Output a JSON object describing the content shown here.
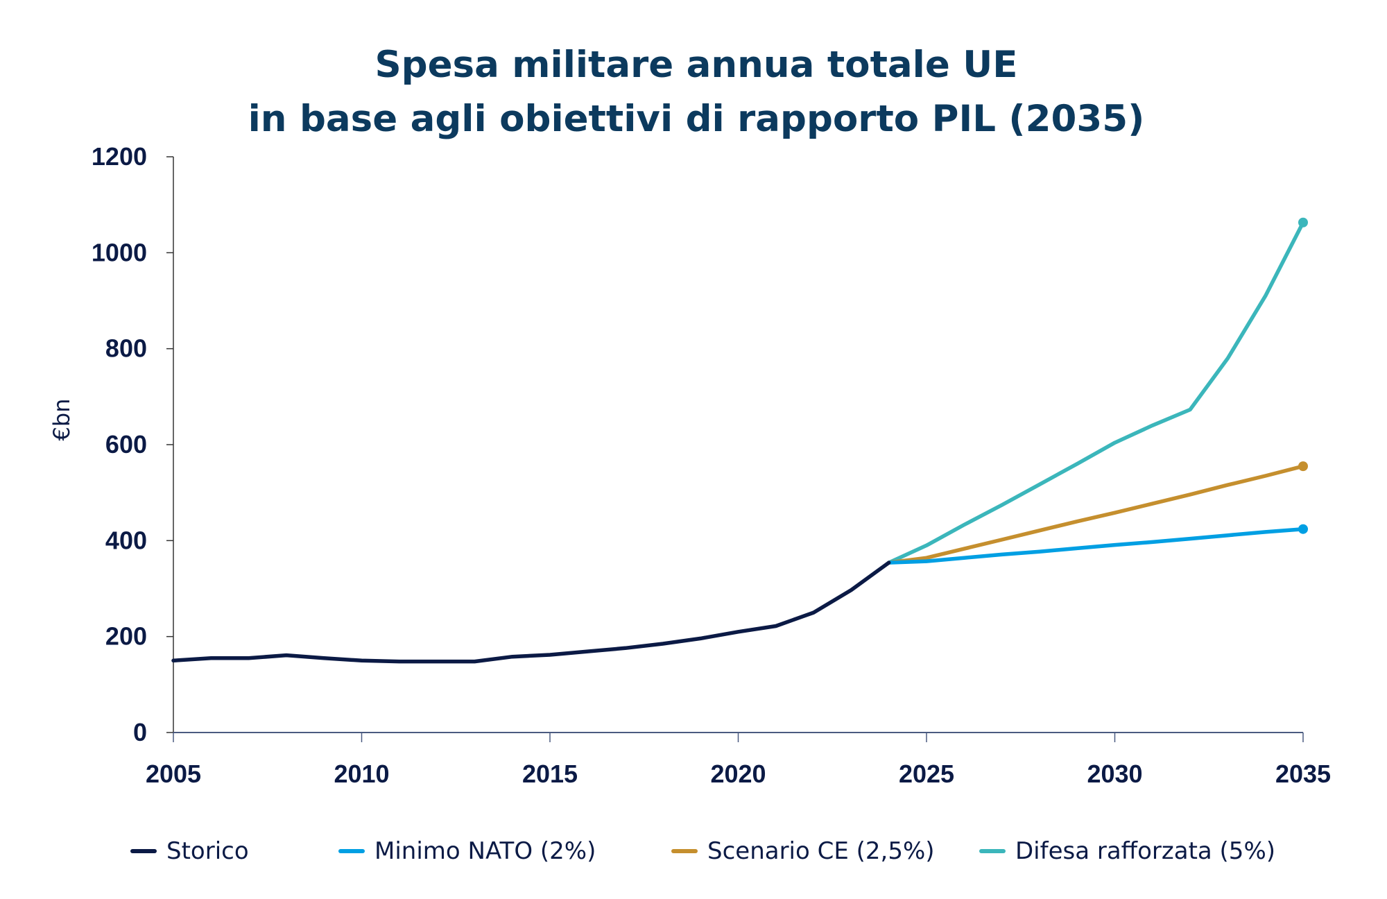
{
  "chart_data": {
    "type": "line",
    "title": [
      "Spesa militare annua totale UE",
      "in base agli obiettivi di rapporto PIL (2035)"
    ],
    "ylabel": "€bn",
    "xlabel": "",
    "xlim": [
      2005,
      2035
    ],
    "ylim": [
      0,
      1200
    ],
    "xticks": [
      2005,
      2010,
      2015,
      2020,
      2025,
      2030,
      2035
    ],
    "yticks": [
      0,
      200,
      400,
      600,
      800,
      1000,
      1200
    ],
    "grid": false,
    "legend_position": "bottom",
    "series": [
      {
        "name": "Storico",
        "color": "#0b1a45",
        "x": [
          2005,
          2006,
          2007,
          2008,
          2009,
          2010,
          2011,
          2012,
          2013,
          2014,
          2015,
          2016,
          2017,
          2018,
          2019,
          2020,
          2021,
          2022,
          2023,
          2024
        ],
        "values": [
          150,
          155,
          155,
          161,
          155,
          150,
          148,
          148,
          148,
          158,
          162,
          169,
          176,
          185,
          196,
          210,
          222,
          250,
          297,
          354
        ]
      },
      {
        "name": "Minimo NATO (2%)",
        "color": "#009fe3",
        "end_marker": true,
        "x": [
          2024,
          2025,
          2026,
          2027,
          2028,
          2029,
          2030,
          2031,
          2032,
          2033,
          2034,
          2035
        ],
        "values": [
          354,
          357,
          364,
          371,
          377,
          384,
          391,
          397,
          404,
          411,
          418,
          424
        ]
      },
      {
        "name": "Scenario CE (2,5%)",
        "color": "#c58f2e",
        "end_marker": true,
        "x": [
          2024,
          2025,
          2026,
          2027,
          2028,
          2029,
          2030,
          2031,
          2032,
          2033,
          2034,
          2035
        ],
        "values": [
          354,
          364,
          383,
          402,
          421,
          440,
          458,
          477,
          496,
          516,
          535,
          555
        ]
      },
      {
        "name": "Difesa rafforzata (5%)",
        "color": "#3bb6bb",
        "end_marker": true,
        "x": [
          2024,
          2025,
          2026,
          2027,
          2028,
          2029,
          2030,
          2031,
          2032,
          2033,
          2034,
          2035
        ],
        "values": [
          354,
          390,
          433,
          474,
          517,
          560,
          604,
          640,
          673,
          780,
          910,
          1063
        ]
      }
    ]
  }
}
